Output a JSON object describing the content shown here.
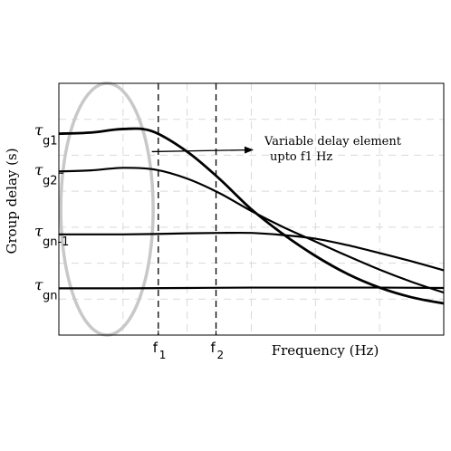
{
  "chart_data": {
    "type": "line",
    "title": "",
    "xlabel": "Frequency (Hz)",
    "ylabel": "Group delay (s)",
    "xlim": [
      0,
      6
    ],
    "ylim": [
      0,
      7
    ],
    "grid": true,
    "x_ticks": [
      {
        "x": 1.55,
        "label": "f",
        "sub": "1"
      },
      {
        "x": 2.45,
        "label": "f",
        "sub": "2"
      }
    ],
    "y_ticks": [
      {
        "y": 5.6,
        "label": "τ",
        "sub": "g1"
      },
      {
        "y": 4.5,
        "label": "τ",
        "sub": "g2"
      },
      {
        "y": 2.8,
        "label": "τ",
        "sub": "gn-1"
      },
      {
        "y": 1.3,
        "label": "τ",
        "sub": "gn"
      }
    ],
    "series": [
      {
        "values": [
          [
            0,
            5.6
          ],
          [
            0.5,
            5.63
          ],
          [
            1.0,
            5.73
          ],
          [
            1.45,
            5.67
          ],
          [
            2.0,
            5.1
          ],
          [
            2.5,
            4.35
          ],
          [
            3.0,
            3.5
          ],
          [
            3.5,
            2.8
          ],
          [
            4.0,
            2.2
          ],
          [
            4.5,
            1.7
          ],
          [
            5.0,
            1.32
          ],
          [
            5.5,
            1.05
          ],
          [
            6.0,
            0.88
          ]
        ]
      },
      {
        "values": [
          [
            0,
            4.55
          ],
          [
            0.5,
            4.58
          ],
          [
            1.0,
            4.65
          ],
          [
            1.5,
            4.6
          ],
          [
            2.0,
            4.35
          ],
          [
            2.5,
            3.95
          ],
          [
            3.0,
            3.45
          ],
          [
            3.5,
            3.0
          ],
          [
            4.0,
            2.6
          ],
          [
            4.5,
            2.2
          ],
          [
            5.0,
            1.82
          ],
          [
            5.5,
            1.48
          ],
          [
            6.0,
            1.18
          ]
        ]
      },
      {
        "values": [
          [
            0,
            2.8
          ],
          [
            0.5,
            2.8
          ],
          [
            1.0,
            2.8
          ],
          [
            1.5,
            2.81
          ],
          [
            2.0,
            2.83
          ],
          [
            2.5,
            2.84
          ],
          [
            3.0,
            2.84
          ],
          [
            3.5,
            2.78
          ],
          [
            4.0,
            2.68
          ],
          [
            4.5,
            2.5
          ],
          [
            5.0,
            2.28
          ],
          [
            5.5,
            2.05
          ],
          [
            6.0,
            1.8
          ]
        ]
      },
      {
        "values": [
          [
            0,
            1.3
          ],
          [
            1.0,
            1.3
          ],
          [
            2.0,
            1.31
          ],
          [
            3.0,
            1.32
          ],
          [
            4.0,
            1.32
          ],
          [
            5.0,
            1.32
          ],
          [
            6.0,
            1.31
          ]
        ]
      }
    ],
    "annotations": [
      {
        "text": "Variable delay element",
        "text2": "upto f1 Hz",
        "arrow_from": [
          1.45,
          5.1
        ],
        "arrow_to": [
          3.05,
          5.15
        ]
      }
    ],
    "highlight": {
      "shape": "ellipse",
      "cx": 0.75,
      "cy": 3.5,
      "rx": 0.72,
      "ry": 3.5
    }
  }
}
